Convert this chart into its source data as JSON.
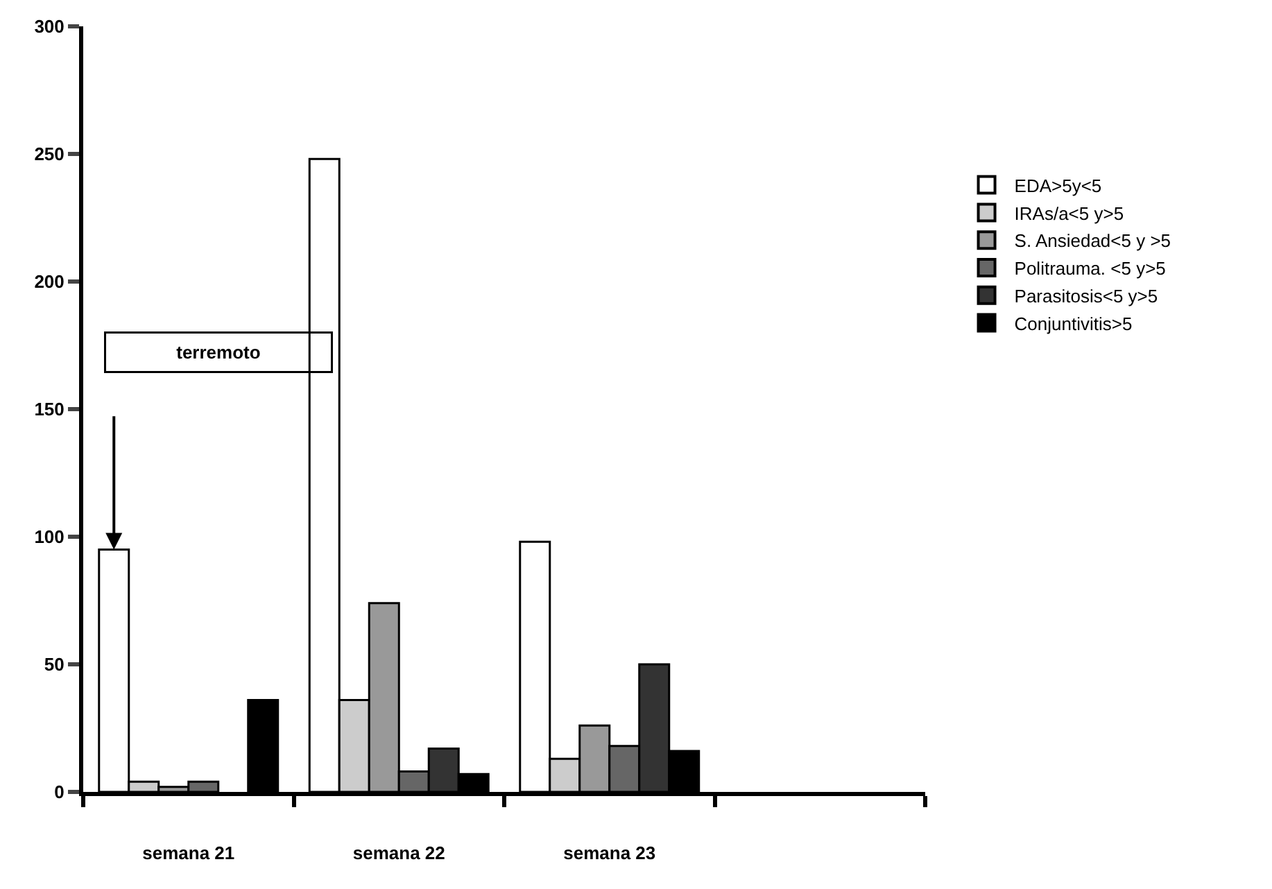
{
  "chart_data": {
    "type": "bar",
    "categories": [
      "semana 21",
      "semana 22",
      "semana 23",
      null
    ],
    "series": [
      {
        "name": "EDA>5y<5",
        "color": "#ffffff",
        "values": [
          95,
          248,
          98,
          null
        ]
      },
      {
        "name": "IRAs/a<5 y>5",
        "color": "#cccccc",
        "values": [
          4,
          36,
          13,
          null
        ]
      },
      {
        "name": "S. Ansiedad<5 y >5",
        "color": "#999999",
        "values": [
          2,
          74,
          26,
          null
        ]
      },
      {
        "name": "Politrauma. <5 y>5",
        "color": "#666666",
        "values": [
          4,
          8,
          18,
          null
        ]
      },
      {
        "name": "Parasitosis<5 y>5",
        "color": "#333333",
        "values": [
          null,
          17,
          50,
          null
        ]
      },
      {
        "name": "Conjuntivitis>5",
        "color": "#000000",
        "values": [
          36,
          7,
          16,
          null
        ]
      }
    ],
    "ylim": [
      0,
      300
    ],
    "yticks": [
      0,
      50,
      100,
      150,
      200,
      250,
      300
    ],
    "annotations": [
      "terremoto"
    ],
    "legend": "right"
  }
}
